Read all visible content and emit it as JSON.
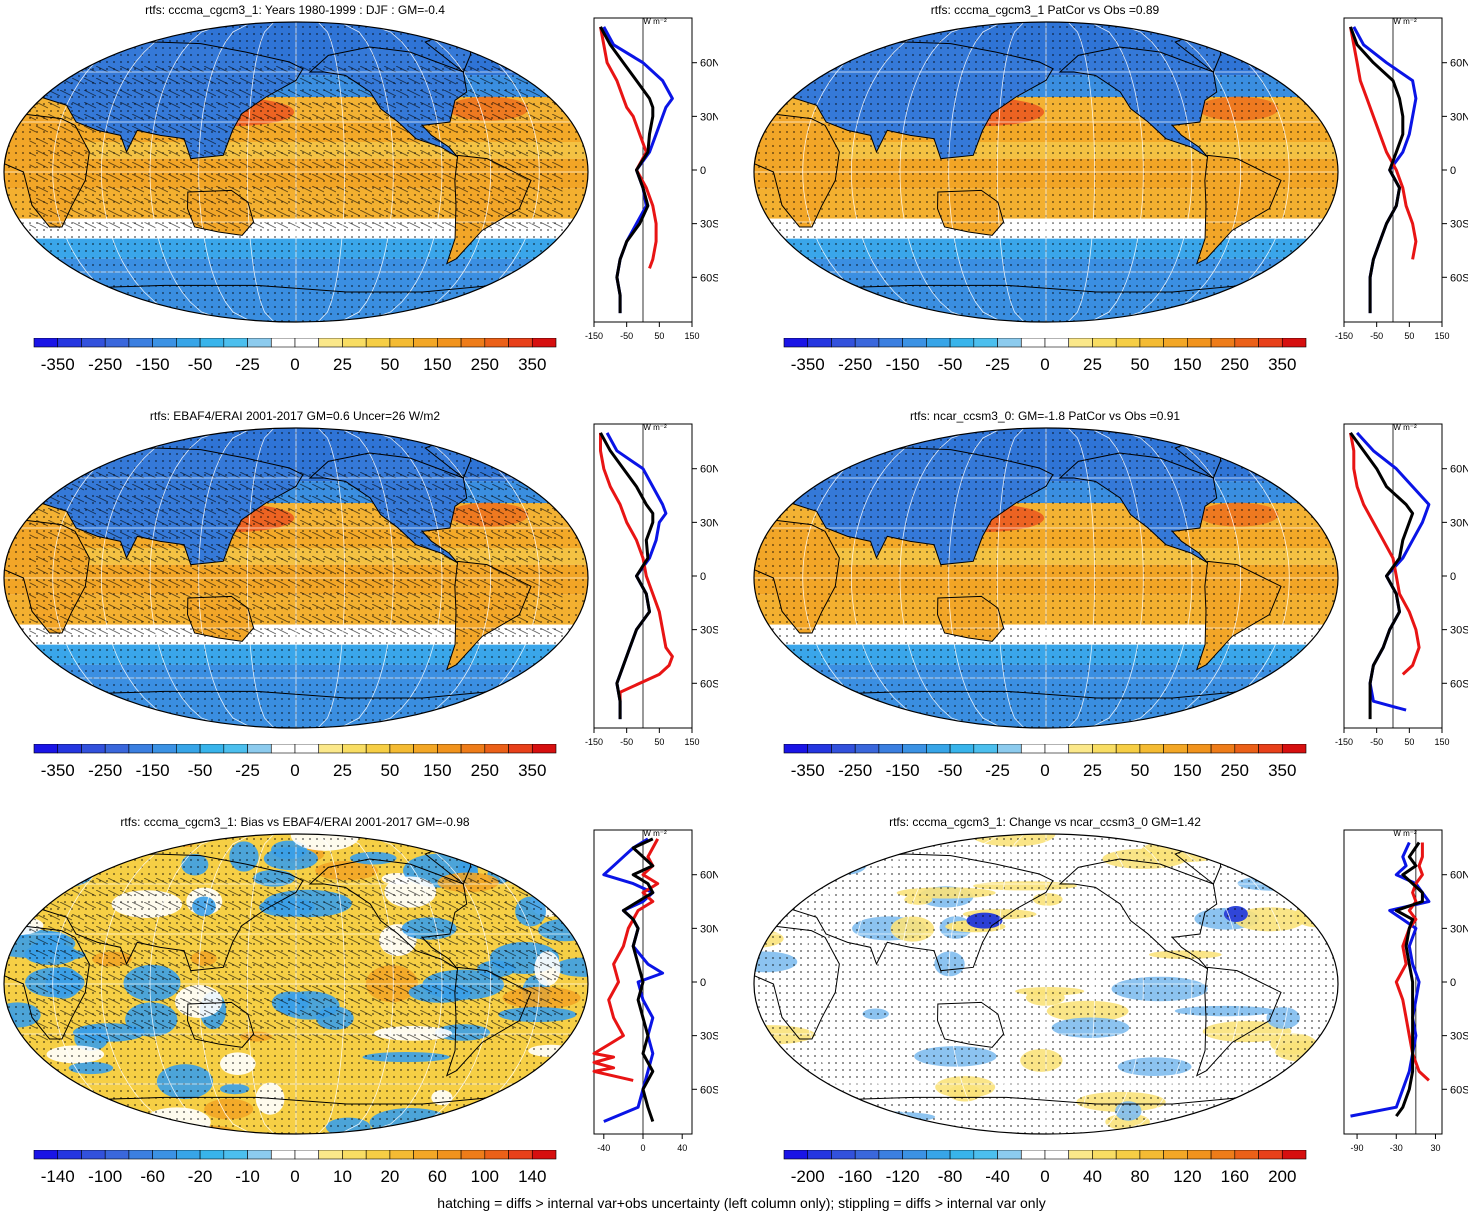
{
  "footer": "hatching = diffs > internal var+obs uncertainty (left column only); stippling = diffs > internal var only",
  "colors": {
    "ocean_blue": "#3d9ae6",
    "deep_blue": "#2d6fd8",
    "warm_orange": "#f2a526",
    "light_yellow": "#f7dc6b",
    "red": "#e8331f",
    "white": "#ffffff",
    "line_blue": "#0a14e6",
    "line_red": "#e81414",
    "line_black": "#000000"
  },
  "panels": [
    {
      "id": "p1",
      "title": "rtfs: cccma_cgcm3_1: Years 1980-1999 : DJF : GM=-0.4",
      "style": "mean",
      "hatching": true,
      "colorbar_labels": [
        "-350",
        "-250",
        "-150",
        "-50",
        "-25",
        "0",
        "25",
        "50",
        "150",
        "250",
        "350"
      ],
      "zonal_units": "W m⁻²",
      "zonal_xticks": [
        "-150",
        "-50",
        "50",
        "150"
      ],
      "zonal_xlim": [
        -150,
        150
      ],
      "lat_labels": [
        "60N",
        "30N",
        "0",
        "30S",
        "60S"
      ],
      "zonal_series": [
        {
          "name": "blue",
          "color": "#0a14e6",
          "lat": [
            80,
            70,
            60,
            50,
            40,
            35,
            30,
            20,
            10,
            0,
            -10,
            -20,
            -30,
            -40,
            -50,
            -60,
            -70,
            -80
          ],
          "value": [
            -120,
            -90,
            0,
            60,
            90,
            70,
            60,
            40,
            20,
            -20,
            0,
            10,
            -20,
            -50,
            -70,
            -80,
            -70,
            -70
          ]
        },
        {
          "name": "red",
          "color": "#e81414",
          "lat": [
            80,
            70,
            60,
            50,
            40,
            35,
            30,
            20,
            10,
            0,
            -10,
            -20,
            -30,
            -40,
            -50,
            -55
          ],
          "value": [
            -130,
            -120,
            -110,
            -80,
            -60,
            -50,
            -30,
            -10,
            10,
            -20,
            10,
            30,
            40,
            40,
            30,
            20
          ]
        },
        {
          "name": "black",
          "color": "#000000",
          "lat": [
            80,
            70,
            60,
            50,
            40,
            35,
            30,
            20,
            10,
            0,
            -10,
            -20,
            -30,
            -40,
            -50,
            -60,
            -70,
            -80
          ],
          "value": [
            -130,
            -100,
            -60,
            -20,
            20,
            30,
            30,
            20,
            15,
            -20,
            0,
            15,
            -10,
            -50,
            -70,
            -80,
            -70,
            -70
          ]
        }
      ]
    },
    {
      "id": "p2",
      "title": "rtfs: cccma_cgcm3_1 PatCor vs Obs =0.89",
      "style": "mean",
      "hatching": false,
      "colorbar_labels": [
        "-350",
        "-250",
        "-150",
        "-50",
        "-25",
        "0",
        "25",
        "50",
        "150",
        "250",
        "350"
      ],
      "zonal_units": "W m⁻²",
      "zonal_xticks": [
        "-150",
        "-50",
        "50",
        "150"
      ],
      "zonal_xlim": [
        -150,
        150
      ],
      "lat_labels": [
        "60N",
        "30N",
        "0",
        "30S",
        "60S"
      ],
      "zonal_series": [
        {
          "name": "blue",
          "color": "#0a14e6",
          "lat": [
            80,
            70,
            60,
            50,
            40,
            30,
            20,
            10,
            0,
            -10,
            -20,
            -30,
            -40,
            -50,
            -60,
            -70,
            -80
          ],
          "value": [
            -120,
            -90,
            -20,
            60,
            70,
            60,
            50,
            30,
            -10,
            20,
            10,
            -20,
            -40,
            -60,
            -70,
            -70,
            -70
          ]
        },
        {
          "name": "red",
          "color": "#e81414",
          "lat": [
            80,
            70,
            60,
            50,
            40,
            30,
            20,
            10,
            0,
            -10,
            -20,
            -30,
            -40,
            -50
          ],
          "value": [
            -130,
            -120,
            -110,
            -100,
            -80,
            -60,
            -40,
            -20,
            10,
            30,
            40,
            60,
            70,
            60
          ]
        },
        {
          "name": "black",
          "color": "#000000",
          "lat": [
            80,
            70,
            60,
            50,
            40,
            30,
            20,
            10,
            0,
            -10,
            -20,
            -30,
            -40,
            -50,
            -60,
            -70,
            -80
          ],
          "value": [
            -130,
            -110,
            -60,
            0,
            20,
            30,
            30,
            10,
            -10,
            20,
            10,
            -20,
            -40,
            -60,
            -70,
            -70,
            -70
          ]
        }
      ]
    },
    {
      "id": "p3",
      "title": "rtfs: EBAF4/ERAI 2001-2017 GM=0.6 Uncer=26 W/m2",
      "style": "mean",
      "hatching": true,
      "colorbar_labels": [
        "-350",
        "-250",
        "-150",
        "-50",
        "-25",
        "0",
        "25",
        "50",
        "150",
        "250",
        "350"
      ],
      "zonal_units": "W m⁻²",
      "zonal_xticks": [
        "-150",
        "-50",
        "50",
        "150"
      ],
      "zonal_xlim": [
        -150,
        150
      ],
      "lat_labels": [
        "60N",
        "30N",
        "0",
        "30S",
        "60S"
      ],
      "zonal_series": [
        {
          "name": "blue",
          "color": "#0a14e6",
          "lat": [
            80,
            70,
            60,
            50,
            40,
            35,
            30,
            20,
            10,
            0,
            -10,
            -20,
            -30,
            -40,
            -50,
            -60,
            -70,
            -80
          ],
          "value": [
            -110,
            -80,
            0,
            30,
            60,
            70,
            50,
            40,
            20,
            -20,
            10,
            20,
            -20,
            -40,
            -60,
            -80,
            -70,
            -70
          ]
        },
        {
          "name": "red",
          "color": "#e81414",
          "lat": [
            80,
            70,
            60,
            50,
            40,
            30,
            20,
            10,
            0,
            -10,
            -20,
            -30,
            -40,
            -45,
            -50,
            -55,
            -65,
            -70
          ],
          "value": [
            -130,
            -130,
            -120,
            -100,
            -70,
            -50,
            -20,
            0,
            10,
            30,
            50,
            60,
            70,
            90,
            80,
            50,
            -70,
            -70
          ]
        },
        {
          "name": "black",
          "color": "#000000",
          "lat": [
            80,
            70,
            60,
            50,
            40,
            35,
            30,
            20,
            10,
            0,
            -10,
            -20,
            -30,
            -40,
            -50,
            -60,
            -70,
            -80
          ],
          "value": [
            -130,
            -100,
            -60,
            -20,
            10,
            30,
            30,
            10,
            15,
            -20,
            10,
            20,
            -20,
            -40,
            -60,
            -80,
            -70,
            -70
          ]
        }
      ]
    },
    {
      "id": "p4",
      "title": "rtfs: ncar_ccsm3_0: GM=-1.8 PatCor vs Obs =0.91",
      "style": "mean",
      "hatching": false,
      "colorbar_labels": [
        "-350",
        "-250",
        "-150",
        "-50",
        "-25",
        "0",
        "25",
        "50",
        "150",
        "250",
        "350"
      ],
      "zonal_units": "W m⁻²",
      "zonal_xticks": [
        "-150",
        "-50",
        "50",
        "150"
      ],
      "zonal_xlim": [
        -150,
        150
      ],
      "lat_labels": [
        "60N",
        "30N",
        "0",
        "30S",
        "60S"
      ],
      "zonal_series": [
        {
          "name": "blue",
          "color": "#0a14e6",
          "lat": [
            80,
            70,
            60,
            50,
            40,
            35,
            30,
            20,
            10,
            0,
            -10,
            -20,
            -30,
            -40,
            -50,
            -60,
            -70,
            -75
          ],
          "value": [
            -110,
            -60,
            10,
            60,
            110,
            100,
            90,
            60,
            30,
            -20,
            10,
            20,
            -10,
            -30,
            -60,
            -70,
            -60,
            40
          ]
        },
        {
          "name": "red",
          "color": "#e81414",
          "lat": [
            80,
            70,
            60,
            50,
            40,
            30,
            20,
            10,
            0,
            -10,
            -20,
            -30,
            -40,
            -50,
            -55
          ],
          "value": [
            -130,
            -120,
            -120,
            -110,
            -90,
            -60,
            -30,
            0,
            10,
            20,
            50,
            70,
            80,
            60,
            30
          ]
        },
        {
          "name": "black",
          "color": "#000000",
          "lat": [
            80,
            70,
            60,
            50,
            40,
            35,
            30,
            20,
            10,
            0,
            -10,
            -20,
            -30,
            -40,
            -50,
            -60,
            -70,
            -80
          ],
          "value": [
            -130,
            -90,
            -50,
            -20,
            40,
            60,
            50,
            30,
            20,
            -20,
            10,
            20,
            -10,
            -30,
            -60,
            -70,
            -70,
            -70
          ]
        }
      ]
    },
    {
      "id": "p5",
      "title": "rtfs: cccma_cgcm3_1: Bias vs EBAF4/ERAI 2001-2017 GM=-0.98",
      "style": "bias",
      "hatching": true,
      "colorbar_labels": [
        "-140",
        "-100",
        "-60",
        "-20",
        "-10",
        "0",
        "10",
        "20",
        "60",
        "100",
        "140"
      ],
      "zonal_units": "W m⁻²",
      "zonal_xticks": [
        "-40",
        "0",
        "40"
      ],
      "zonal_xlim": [
        -50,
        50
      ],
      "lat_labels": [
        "60N",
        "30N",
        "0",
        "30S",
        "60S"
      ],
      "zonal_series": [
        {
          "name": "blue",
          "color": "#0a14e6",
          "lat": [
            80,
            75,
            70,
            65,
            60,
            55,
            50,
            45,
            40,
            35,
            30,
            20,
            10,
            5,
            0,
            -10,
            -20,
            -30,
            -40,
            -50,
            -60,
            -70,
            -78
          ],
          "value": [
            5,
            -10,
            -20,
            -30,
            -40,
            -10,
            10,
            0,
            -20,
            -10,
            -5,
            -10,
            5,
            20,
            -5,
            0,
            10,
            5,
            10,
            5,
            0,
            -5,
            -40
          ]
        },
        {
          "name": "red",
          "color": "#e81414",
          "lat": [
            80,
            75,
            70,
            65,
            60,
            55,
            50,
            45,
            40,
            35,
            30,
            20,
            10,
            0,
            -10,
            -20,
            -30,
            -35,
            -40,
            -42,
            -45,
            -48,
            -50,
            -55
          ],
          "value": [
            15,
            10,
            5,
            10,
            0,
            15,
            0,
            10,
            -5,
            -10,
            -15,
            -20,
            -30,
            -25,
            -35,
            -30,
            -20,
            -35,
            -50,
            -30,
            -50,
            -30,
            -50,
            -10
          ]
        },
        {
          "name": "black",
          "color": "#000000",
          "lat": [
            80,
            75,
            70,
            65,
            60,
            55,
            50,
            45,
            40,
            35,
            30,
            20,
            10,
            0,
            -10,
            -20,
            -30,
            -40,
            -50,
            -60,
            -70,
            -78
          ],
          "value": [
            10,
            -10,
            0,
            10,
            -10,
            5,
            10,
            -5,
            -20,
            -10,
            -5,
            -10,
            -5,
            0,
            -5,
            0,
            5,
            0,
            10,
            0,
            5,
            10
          ]
        }
      ]
    },
    {
      "id": "p6",
      "title": "rtfs: cccma_cgcm3_1: Change vs ncar_ccsm3_0 GM=1.42",
      "style": "change",
      "hatching": false,
      "colorbar_labels": [
        "-200",
        "-160",
        "-120",
        "-80",
        "-40",
        "0",
        "40",
        "80",
        "120",
        "160",
        "200"
      ],
      "zonal_units": "W m⁻²",
      "zonal_xticks": [
        "-90",
        "-30",
        "30"
      ],
      "zonal_xlim": [
        -110,
        40
      ],
      "lat_labels": [
        "60N",
        "30N",
        "0",
        "30S",
        "60S"
      ],
      "zonal_series": [
        {
          "name": "blue",
          "color": "#0a14e6",
          "lat": [
            78,
            70,
            65,
            60,
            55,
            50,
            45,
            40,
            35,
            30,
            20,
            10,
            0,
            -10,
            -20,
            -30,
            -40,
            -50,
            -60,
            -70,
            -75
          ],
          "value": [
            -10,
            -20,
            -15,
            -30,
            0,
            10,
            20,
            -40,
            -20,
            0,
            -10,
            -5,
            5,
            0,
            -5,
            0,
            -5,
            -10,
            -20,
            -30,
            -100
          ]
        },
        {
          "name": "red",
          "color": "#e81414",
          "lat": [
            78,
            70,
            65,
            60,
            55,
            50,
            45,
            40,
            35,
            30,
            20,
            10,
            0,
            -10,
            -20,
            -30,
            -40,
            -50,
            -55
          ],
          "value": [
            10,
            10,
            5,
            10,
            0,
            -5,
            0,
            -10,
            0,
            -10,
            -20,
            -15,
            -30,
            -20,
            -15,
            -10,
            -5,
            5,
            20
          ]
        },
        {
          "name": "black",
          "color": "#000000",
          "lat": [
            78,
            70,
            65,
            60,
            55,
            50,
            45,
            40,
            35,
            30,
            20,
            10,
            0,
            -10,
            -20,
            -30,
            -40,
            -50,
            -60,
            -70,
            -75
          ],
          "value": [
            5,
            -10,
            0,
            -20,
            -5,
            10,
            10,
            -30,
            -5,
            -10,
            -15,
            -10,
            -5,
            -5,
            -5,
            -5,
            -5,
            -5,
            -10,
            -20,
            -30
          ]
        }
      ]
    }
  ]
}
